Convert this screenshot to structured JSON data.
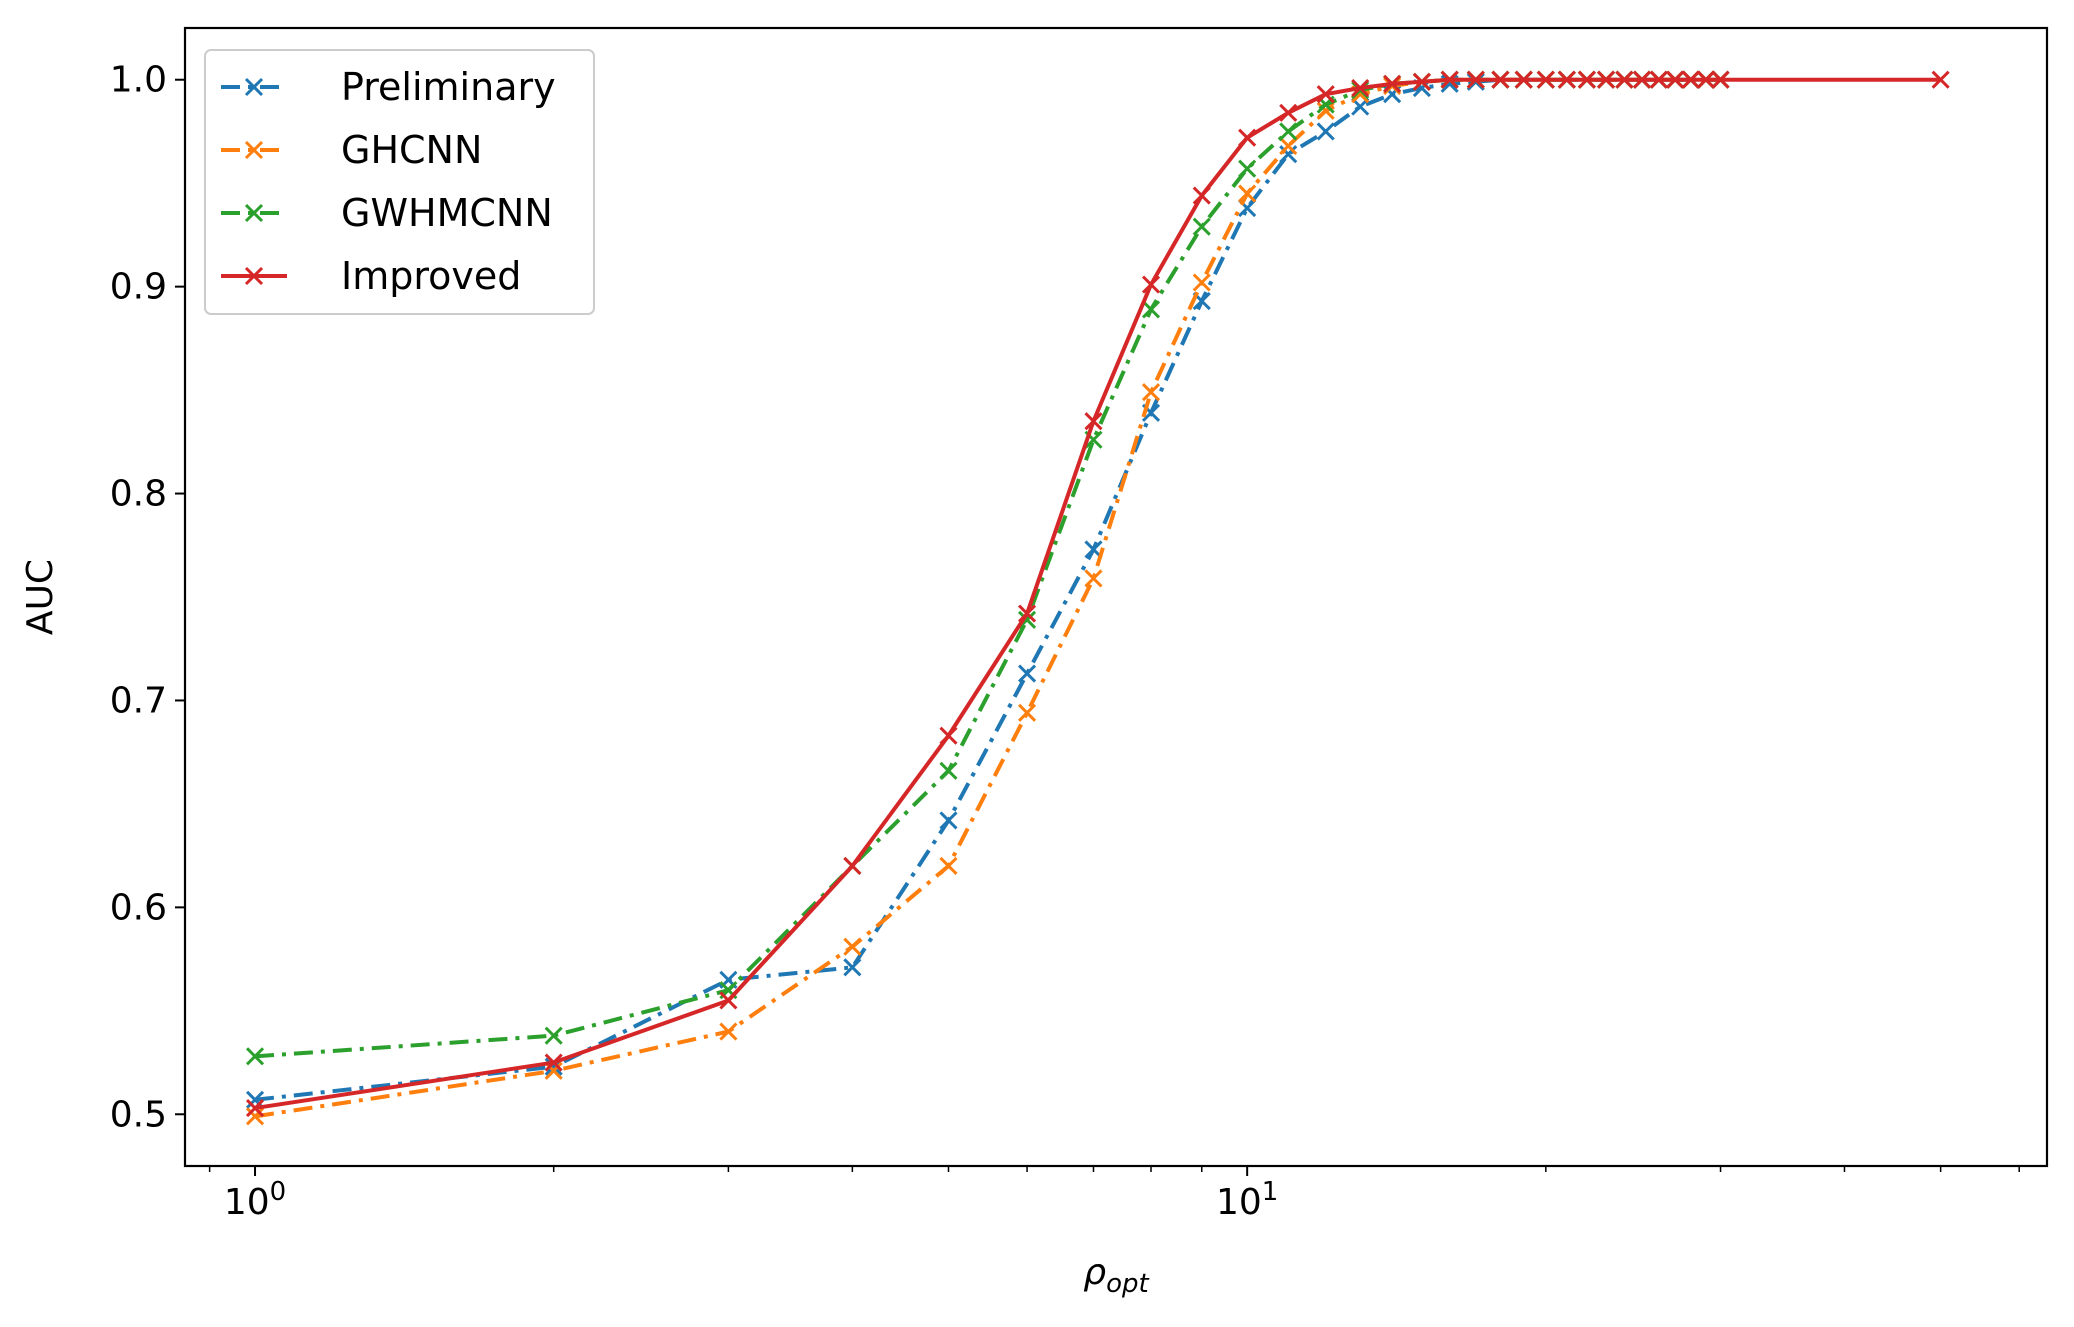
{
  "chart_data": {
    "type": "line",
    "title": "",
    "xlabel": "ρ",
    "xlabel_subscript": "opt",
    "ylabel": "AUC",
    "xscale": "log",
    "xlim": [
      0.85,
      64
    ],
    "ylim": [
      0.475,
      1.025
    ],
    "yticks": [
      0.5,
      0.6,
      0.7,
      0.8,
      0.9,
      1.0
    ],
    "ytick_labels": [
      "0.5",
      "0.6",
      "0.7",
      "0.8",
      "0.9",
      "1.0"
    ],
    "xticks": [
      {
        "value": 1,
        "base": "10",
        "exp": "0"
      },
      {
        "value": 10,
        "base": "10",
        "exp": "1"
      }
    ],
    "grid": false,
    "legend_position": "top-left",
    "series": [
      {
        "name": "Preliminary",
        "color": "#1f77b4",
        "linestyle": "dashdot",
        "marker": "x",
        "x": [
          1,
          2,
          3,
          4,
          5,
          6,
          7,
          8,
          9,
          10,
          11,
          12,
          13,
          14,
          15,
          16,
          17,
          18,
          19,
          20,
          21,
          22,
          23,
          24,
          25,
          26,
          27,
          28,
          29,
          30
        ],
        "y": [
          0.507,
          0.523,
          0.565,
          0.571,
          0.642,
          0.713,
          0.773,
          0.839,
          0.893,
          0.938,
          0.964,
          0.975,
          0.987,
          0.993,
          0.996,
          0.998,
          0.999,
          1.0,
          1.0,
          1.0,
          1.0,
          1.0,
          1.0,
          1.0,
          1.0,
          1.0,
          1.0,
          1.0,
          1.0,
          1.0
        ]
      },
      {
        "name": "GHCNN",
        "color": "#ff7f0e",
        "linestyle": "dashdot",
        "marker": "x",
        "x": [
          1,
          2,
          3,
          4,
          5,
          6,
          7,
          8,
          9,
          10,
          11,
          12,
          13,
          14,
          15,
          16,
          17,
          18,
          19,
          20,
          21,
          22,
          23,
          24,
          25,
          26,
          27,
          28,
          29,
          30
        ],
        "y": [
          0.499,
          0.521,
          0.54,
          0.581,
          0.62,
          0.694,
          0.759,
          0.849,
          0.902,
          0.945,
          0.968,
          0.985,
          0.993,
          0.997,
          0.999,
          1.0,
          1.0,
          1.0,
          1.0,
          1.0,
          1.0,
          1.0,
          1.0,
          1.0,
          1.0,
          1.0,
          1.0,
          1.0,
          1.0,
          1.0
        ]
      },
      {
        "name": "GWHMCNN",
        "color": "#2ca02c",
        "linestyle": "dashdot",
        "marker": "x",
        "x": [
          1,
          2,
          3,
          4,
          5,
          6,
          7,
          8,
          9,
          10,
          11,
          12,
          13,
          14,
          15,
          16,
          17,
          18,
          19,
          20,
          21,
          22,
          23,
          24,
          25,
          26,
          27,
          28,
          29,
          30
        ],
        "y": [
          0.528,
          0.538,
          0.56,
          0.62,
          0.666,
          0.739,
          0.826,
          0.889,
          0.929,
          0.957,
          0.975,
          0.988,
          0.995,
          0.998,
          0.999,
          1.0,
          1.0,
          1.0,
          1.0,
          1.0,
          1.0,
          1.0,
          1.0,
          1.0,
          1.0,
          1.0,
          1.0,
          1.0,
          1.0,
          1.0
        ]
      },
      {
        "name": "Improved",
        "color": "#d62728",
        "linestyle": "solid",
        "marker": "x",
        "x": [
          1,
          2,
          3,
          4,
          5,
          6,
          7,
          8,
          9,
          10,
          11,
          12,
          13,
          14,
          15,
          16,
          17,
          18,
          19,
          20,
          21,
          22,
          23,
          24,
          25,
          26,
          27,
          28,
          29,
          30,
          50
        ],
        "y": [
          0.503,
          0.525,
          0.555,
          0.62,
          0.683,
          0.742,
          0.835,
          0.901,
          0.944,
          0.972,
          0.984,
          0.993,
          0.996,
          0.998,
          0.999,
          1.0,
          1.0,
          1.0,
          1.0,
          1.0,
          1.0,
          1.0,
          1.0,
          1.0,
          1.0,
          1.0,
          1.0,
          1.0,
          1.0,
          1.0,
          1.0
        ]
      }
    ]
  }
}
